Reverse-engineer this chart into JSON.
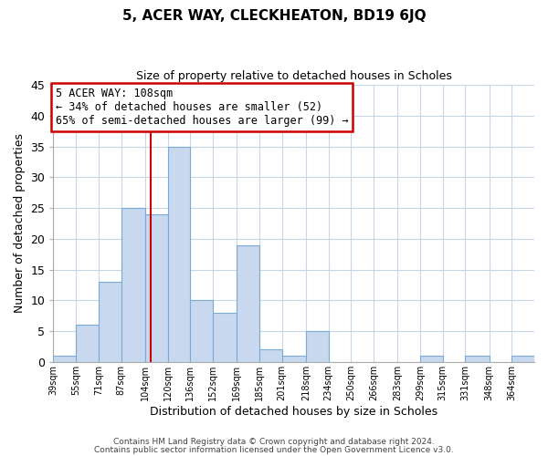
{
  "title": "5, ACER WAY, CLECKHEATON, BD19 6JQ",
  "subtitle": "Size of property relative to detached houses in Scholes",
  "xlabel": "Distribution of detached houses by size in Scholes",
  "ylabel": "Number of detached properties",
  "bar_color": "#c8d8ef",
  "bar_edge_color": "#7baad4",
  "bin_labels": [
    "39sqm",
    "55sqm",
    "71sqm",
    "87sqm",
    "104sqm",
    "120sqm",
    "136sqm",
    "152sqm",
    "169sqm",
    "185sqm",
    "201sqm",
    "218sqm",
    "234sqm",
    "250sqm",
    "266sqm",
    "283sqm",
    "299sqm",
    "315sqm",
    "331sqm",
    "348sqm",
    "364sqm"
  ],
  "bin_edges": [
    39,
    55,
    71,
    87,
    104,
    120,
    136,
    152,
    169,
    185,
    201,
    218,
    234,
    250,
    266,
    283,
    299,
    315,
    331,
    348,
    364,
    380
  ],
  "counts": [
    1,
    6,
    13,
    25,
    24,
    35,
    10,
    8,
    19,
    2,
    1,
    5,
    0,
    0,
    0,
    0,
    1,
    0,
    1,
    0,
    1
  ],
  "ylim": [
    0,
    45
  ],
  "yticks": [
    0,
    5,
    10,
    15,
    20,
    25,
    30,
    35,
    40,
    45
  ],
  "vline_x": 108,
  "vline_color": "#cc0000",
  "annotation_title": "5 ACER WAY: 108sqm",
  "annotation_line1": "← 34% of detached houses are smaller (52)",
  "annotation_line2": "65% of semi-detached houses are larger (99) →",
  "annotation_box_color": "#ffffff",
  "annotation_box_edge": "#cc0000",
  "footer1": "Contains HM Land Registry data © Crown copyright and database right 2024.",
  "footer2": "Contains public sector information licensed under the Open Government Licence v3.0.",
  "background_color": "#ffffff",
  "grid_color": "#c8d4e8"
}
